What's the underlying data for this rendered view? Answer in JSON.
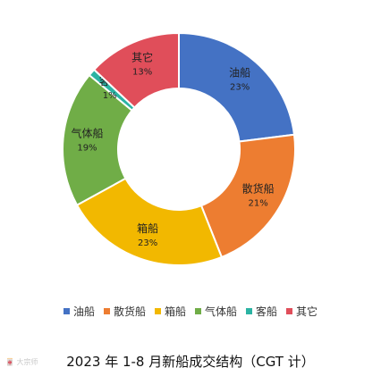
{
  "chart_data": {
    "type": "pie",
    "title": "2023 年 1-8 月新船成交结构（CGT 计）",
    "categories": [
      "油船",
      "散货船",
      "箱船",
      "气体船",
      "客船",
      "其它"
    ],
    "values": [
      23,
      21,
      23,
      19,
      1,
      13
    ],
    "labels": [
      "23%",
      "21%",
      "23%",
      "19%",
      "1%",
      "13%"
    ],
    "colors": [
      "#4472c4",
      "#ed7d31",
      "#f2b800",
      "#70ad47",
      "#2bb3a3",
      "#e04e5a"
    ],
    "donut": true,
    "legend_position": "bottom"
  },
  "watermark": "🀄 大宗师"
}
